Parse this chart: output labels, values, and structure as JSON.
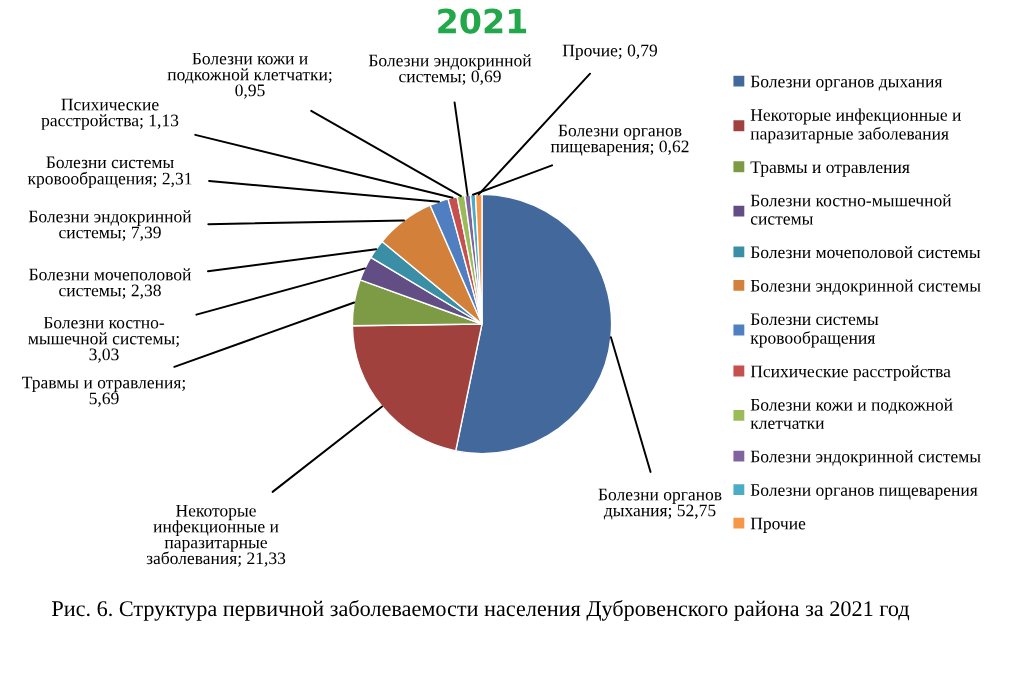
{
  "chart_data": {
    "type": "pie",
    "title": "2021",
    "categories": [
      "Болезни органов дыхания",
      "Некоторые инфекционные и\nпаразитарные заболевания",
      "Травмы и отравления",
      "Болезни костно-мышечной\nсистемы",
      "Болезни мочеполовой системы",
      "Болезни эндокринной системы",
      "Болезни системы\nкровообращения",
      "Психические расстройства",
      "Болезни кожи и подкожной\nклетчатки",
      "Болезни эндокринной системы",
      "Болезни органов пищеварения",
      "Прочие"
    ],
    "values": [
      52.75,
      21.33,
      5.69,
      3.03,
      2.38,
      7.39,
      2.31,
      1.13,
      0.95,
      0.69,
      0.62,
      0.79
    ],
    "colors": [
      "#43689b",
      "#a0413e",
      "#7d9a44",
      "#624d84",
      "#3a8ea5",
      "#d2803a",
      "#4f7fc0",
      "#c6504d",
      "#9bbb59",
      "#8064a2",
      "#4bacc6",
      "#f79646"
    ],
    "value_labels": [
      "Болезни органов\nдыхания; 52,75",
      "Некоторые\nинфекционные и\nпаразитарные\nзаболевания; 21,33",
      "Травмы и отравления;\n5,69",
      "Болезни костно-\nмышечной системы;\n3,03",
      "Болезни мочеполовой\nсистемы; 2,38",
      "Болезни эндокринной\nсистемы; 7,39",
      "Болезни системы\nкровообращения; 2,31",
      "Психические\nрасстройства; 1,13",
      "Болезни кожи и\nподкожной клетчатки;\n0,95",
      "Болезни эндокринной\nсистемы; 0,69",
      "Болезни органов\nпищеварения; 0,62",
      "Прочие; 0,79"
    ],
    "legend": "right",
    "annotations": [
      "Рис. 6. Структура первичной заболеваемости населения Дубровенского района за 2021 год"
    ]
  }
}
